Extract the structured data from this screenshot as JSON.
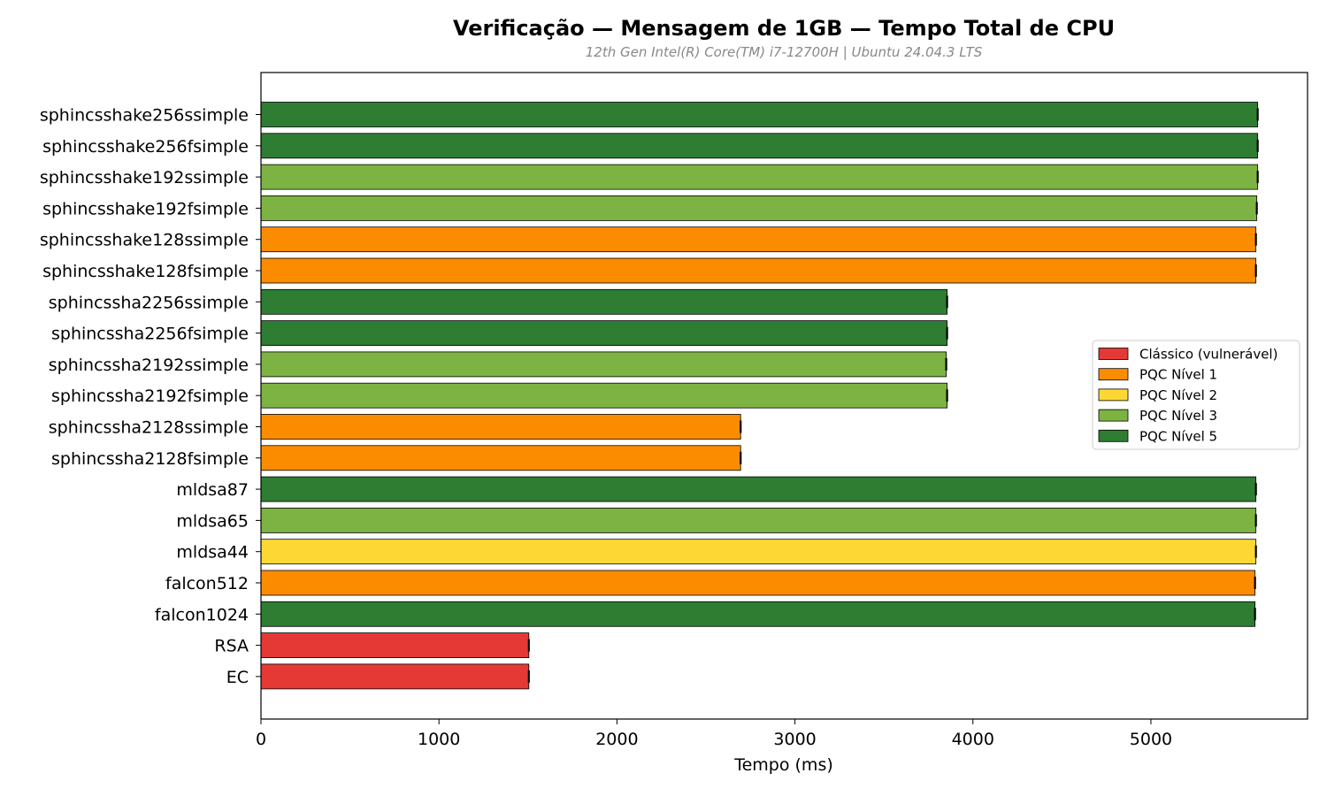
{
  "chart_data": {
    "type": "bar",
    "orientation": "horizontal",
    "title": "Verificação — Mensagem de 1GB — Tempo Total de CPU",
    "subtitle": "12th Gen Intel(R) Core(TM) i7-12700H | Ubuntu 24.04.3 LTS",
    "xlabel": "Tempo (ms)",
    "ylabel": "",
    "xlim": [
      0,
      5880
    ],
    "xticks": [
      0,
      1000,
      2000,
      3000,
      4000,
      5000
    ],
    "grid": false,
    "legend_position": "center-right",
    "legend": [
      {
        "label": "Clássico (vulnerável)",
        "color": "#e53935"
      },
      {
        "label": "PQC Nível 1",
        "color": "#fb8c00"
      },
      {
        "label": "PQC Nível 2",
        "color": "#fdd835"
      },
      {
        "label": "PQC Nível 3",
        "color": "#7cb342"
      },
      {
        "label": "PQC Nível 5",
        "color": "#2e7d32"
      }
    ],
    "bars": [
      {
        "label": "sphincsshake256ssimple",
        "value": 5600,
        "level": 4
      },
      {
        "label": "sphincsshake256fsimple",
        "value": 5600,
        "level": 4
      },
      {
        "label": "sphincsshake192ssimple",
        "value": 5600,
        "level": 3
      },
      {
        "label": "sphincsshake192fsimple",
        "value": 5595,
        "level": 3
      },
      {
        "label": "sphincsshake128ssimple",
        "value": 5590,
        "level": 1
      },
      {
        "label": "sphincsshake128fsimple",
        "value": 5590,
        "level": 1
      },
      {
        "label": "sphincssha2256ssimple",
        "value": 3855,
        "level": 4
      },
      {
        "label": "sphincssha2256fsimple",
        "value": 3855,
        "level": 4
      },
      {
        "label": "sphincssha2192ssimple",
        "value": 3850,
        "level": 3
      },
      {
        "label": "sphincssha2192fsimple",
        "value": 3855,
        "level": 3
      },
      {
        "label": "sphincssha2128ssimple",
        "value": 2695,
        "level": 1
      },
      {
        "label": "sphincssha2128fsimple",
        "value": 2695,
        "level": 1
      },
      {
        "label": "mldsa87",
        "value": 5590,
        "level": 4
      },
      {
        "label": "mldsa65",
        "value": 5590,
        "level": 3
      },
      {
        "label": "mldsa44",
        "value": 5590,
        "level": 2
      },
      {
        "label": "falcon512",
        "value": 5585,
        "level": 1
      },
      {
        "label": "falcon1024",
        "value": 5585,
        "level": 4
      },
      {
        "label": "RSA",
        "value": 1505,
        "level": 0
      },
      {
        "label": "EC",
        "value": 1505,
        "level": 0
      }
    ]
  }
}
